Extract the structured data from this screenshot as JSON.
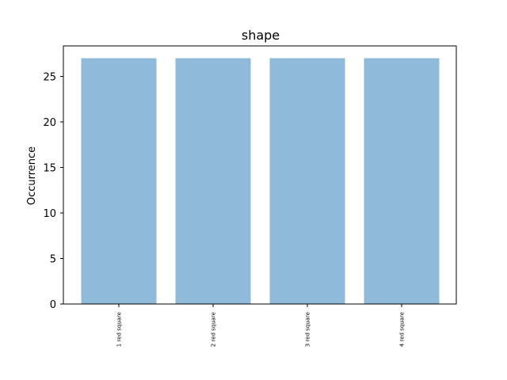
{
  "chart_data": {
    "type": "bar",
    "title": "shape",
    "xlabel": "",
    "ylabel": "Occurrence",
    "categories": [
      "1 red square",
      "2 red square",
      "3 red square",
      "4 red square"
    ],
    "values": [
      27,
      27,
      27,
      27
    ],
    "ylim": [
      0,
      28.35
    ],
    "yticks": [
      0,
      5,
      10,
      15,
      20,
      25
    ],
    "bar_color": "#8fbad9",
    "grid": false
  }
}
